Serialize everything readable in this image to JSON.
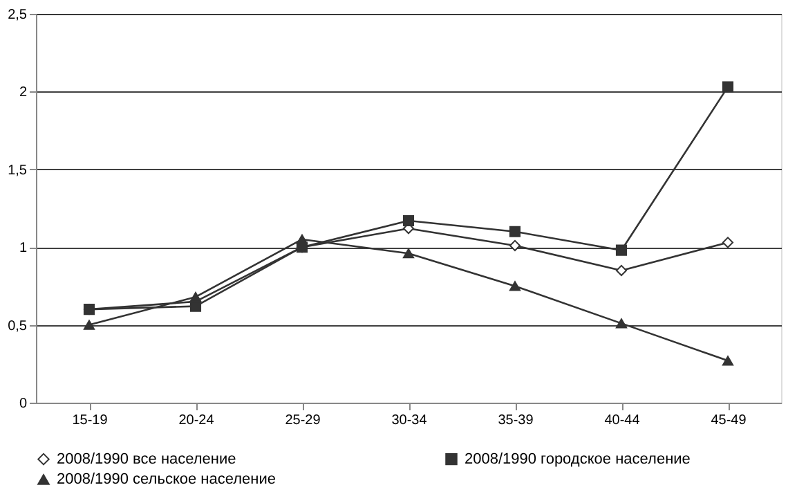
{
  "chart_data": {
    "type": "line",
    "categories": [
      "15-19",
      "20-24",
      "25-29",
      "30-34",
      "35-39",
      "40-44",
      "45-49"
    ],
    "series": [
      {
        "name": "2008/1990 все население",
        "color": "#333333",
        "marker": "diamond",
        "values": [
          0.6,
          0.65,
          1.0,
          1.12,
          1.01,
          0.85,
          1.03
        ]
      },
      {
        "name": "2008/1990 городское население",
        "color": "#333333",
        "marker": "square",
        "values": [
          0.6,
          0.62,
          1.0,
          1.17,
          1.1,
          0.98,
          2.03
        ]
      },
      {
        "name": "2008/1990 сельское население",
        "color": "#333333",
        "marker": "triangle",
        "values": [
          0.5,
          0.68,
          1.05,
          0.96,
          0.75,
          0.51,
          0.27
        ]
      }
    ],
    "ylim": [
      0,
      2.5
    ],
    "yticks": [
      0,
      {
        "value": 0.5,
        "label": "0,5"
      },
      1,
      {
        "value": 1.5,
        "label": "1,5"
      },
      2,
      {
        "value": 2.5,
        "label": "2,5"
      }
    ],
    "grid": "y",
    "legend": "bottom",
    "line_style": "solid"
  }
}
